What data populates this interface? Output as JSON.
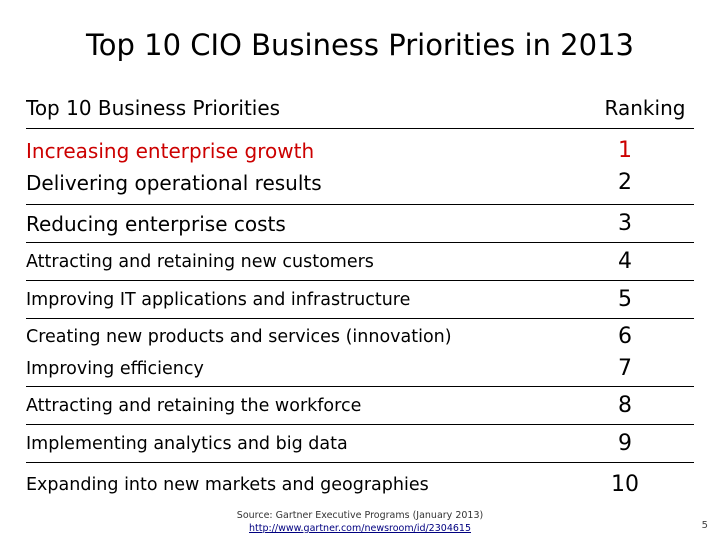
{
  "slide": {
    "title": "Top 10 CIO Business Priorities in 2013",
    "page_number": "5"
  },
  "table": {
    "headers": {
      "priorities": "Top 10 Business Priorities",
      "ranking": "Ranking"
    },
    "rows": [
      {
        "items": [
          "Increasing enterprise growth",
          "Delivering operational results"
        ],
        "ranks": [
          "1",
          "2"
        ]
      },
      {
        "items": [
          "Reducing enterprise costs"
        ],
        "ranks": [
          "3"
        ]
      },
      {
        "items": [
          "Attracting and retaining new customers"
        ],
        "ranks": [
          "4"
        ]
      },
      {
        "items": [
          "Improving IT applications and infrastructure"
        ],
        "ranks": [
          "5"
        ]
      },
      {
        "items": [
          "Creating new products and services (innovation)",
          "Improving efficiency"
        ],
        "ranks": [
          "6",
          "7"
        ]
      },
      {
        "items": [
          "Attracting and retaining the workforce"
        ],
        "ranks": [
          "8"
        ]
      },
      {
        "items": [
          "Implementing analytics and big data"
        ],
        "ranks": [
          "9"
        ]
      },
      {
        "items": [
          "Expanding into new markets and geographies"
        ],
        "ranks": [
          "10"
        ]
      }
    ]
  },
  "footer": {
    "source": "Source: Gartner Executive Programs (January 2013)",
    "url": "http://www.gartner.com/newsroom/id/2304615"
  },
  "colors": {
    "highlight": "#cc0000"
  }
}
